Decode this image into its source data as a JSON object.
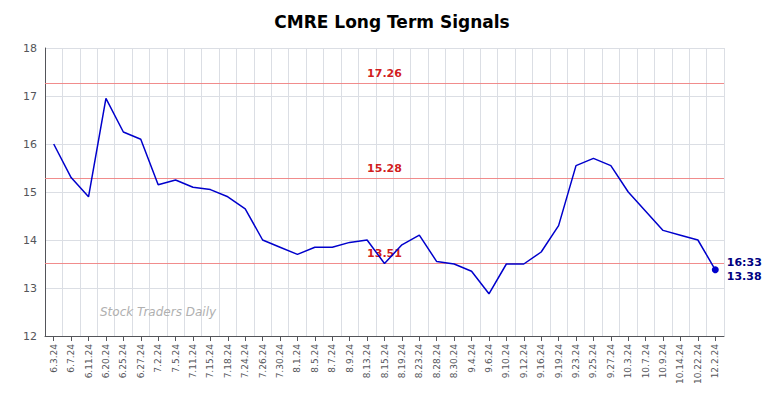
{
  "chart_data": {
    "type": "line",
    "title": "CMRE Long Term Signals",
    "categories": [
      "6.3.24",
      "6.7.24",
      "6.11.24",
      "6.20.24",
      "6.25.24",
      "6.27.24",
      "7.2.24",
      "7.5.24",
      "7.11.24",
      "7.15.24",
      "7.18.24",
      "7.24.24",
      "7.26.24",
      "7.30.24",
      "8.1.24",
      "8.5.24",
      "8.7.24",
      "8.9.24",
      "8.13.24",
      "8.15.24",
      "8.19.24",
      "8.23.24",
      "8.28.24",
      "8.30.24",
      "9.4.24",
      "9.6.24",
      "9.10.24",
      "9.12.24",
      "9.16.24",
      "9.19.24",
      "9.23.24",
      "9.25.24",
      "9.27.24",
      "10.3.24",
      "10.7.24",
      "10.9.24",
      "10.14.24",
      "10.22.24",
      "12.2.24"
    ],
    "values": [
      16.0,
      15.3,
      14.9,
      16.95,
      16.25,
      16.1,
      15.15,
      15.25,
      15.1,
      15.05,
      14.9,
      14.65,
      14.0,
      13.85,
      13.7,
      13.85,
      13.85,
      13.95,
      14.0,
      13.51,
      13.9,
      14.1,
      13.55,
      13.5,
      13.35,
      12.88,
      13.5,
      13.5,
      13.75,
      14.3,
      15.55,
      15.7,
      15.55,
      15.0,
      14.6,
      14.2,
      14.1,
      14.0,
      13.38
    ],
    "color": "#0000cc",
    "ylim": [
      12,
      18
    ],
    "yticks": [
      12,
      13,
      14,
      15,
      16,
      17,
      18
    ],
    "grid": true,
    "hlines": [
      {
        "value": 17.26,
        "label": "17.26",
        "color": "#f08080",
        "label_color": "#cc0000"
      },
      {
        "value": 15.28,
        "label": "15.28",
        "color": "#f08080",
        "label_color": "#cc0000"
      },
      {
        "value": 13.51,
        "label": "13.51",
        "color": "#f08080",
        "label_color": "#cc0000"
      }
    ],
    "annotations": [
      {
        "text": "16:33",
        "color": "#000080"
      },
      {
        "text": "13.38",
        "color": "#000080"
      }
    ],
    "watermark": {
      "text": "Stock Traders Daily",
      "color": "#b0b0b0"
    }
  }
}
